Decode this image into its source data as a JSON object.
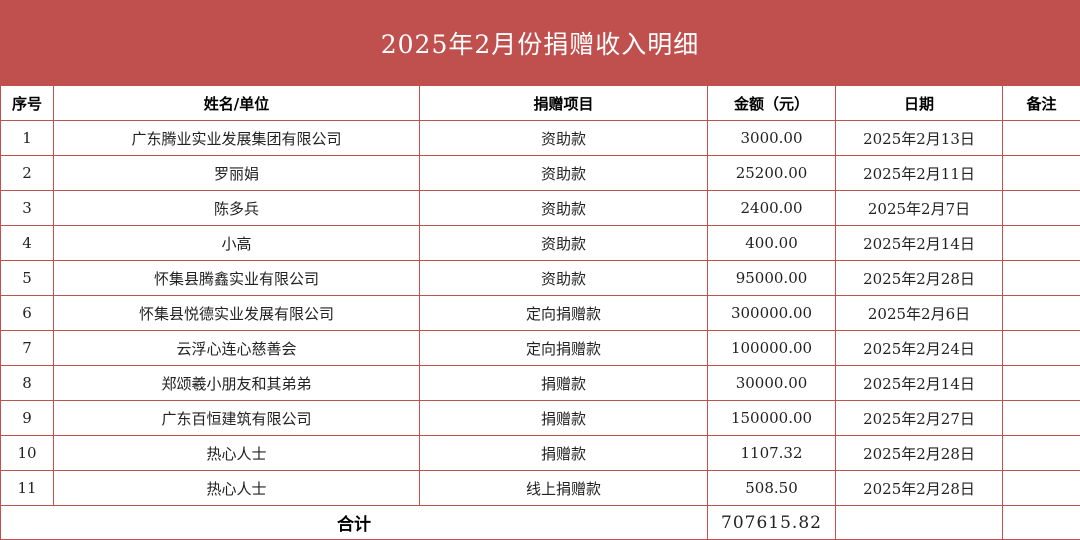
{
  "title": "2025年2月份捐赠收入明细",
  "accent_color": "#c0504d",
  "headers": {
    "index": "序号",
    "name": "姓名/单位",
    "item": "捐赠项目",
    "amount": "金额（元）",
    "date": "日期",
    "note": "备注"
  },
  "rows": [
    {
      "index": "1",
      "name": "广东腾业实业发展集团有限公司",
      "item": "资助款",
      "amount": "3000.00",
      "date": "2025年2月13日",
      "note": ""
    },
    {
      "index": "2",
      "name": "罗丽娟",
      "item": "资助款",
      "amount": "25200.00",
      "date": "2025年2月11日",
      "note": ""
    },
    {
      "index": "3",
      "name": "陈多兵",
      "item": "资助款",
      "amount": "2400.00",
      "date": "2025年2月7日",
      "note": ""
    },
    {
      "index": "4",
      "name": "小高",
      "item": "资助款",
      "amount": "400.00",
      "date": "2025年2月14日",
      "note": ""
    },
    {
      "index": "5",
      "name": "怀集县腾鑫实业有限公司",
      "item": "资助款",
      "amount": "95000.00",
      "date": "2025年2月28日",
      "note": ""
    },
    {
      "index": "6",
      "name": "怀集县悦德实业发展有限公司",
      "item": "定向捐赠款",
      "amount": "300000.00",
      "date": "2025年2月6日",
      "note": ""
    },
    {
      "index": "7",
      "name": "云浮心连心慈善会",
      "item": "定向捐赠款",
      "amount": "100000.00",
      "date": "2025年2月24日",
      "note": ""
    },
    {
      "index": "8",
      "name": "郑颂羲小朋友和其弟弟",
      "item": "捐赠款",
      "amount": "30000.00",
      "date": "2025年2月14日",
      "note": ""
    },
    {
      "index": "9",
      "name": "广东百恒建筑有限公司",
      "item": "捐赠款",
      "amount": "150000.00",
      "date": "2025年2月27日",
      "note": ""
    },
    {
      "index": "10",
      "name": "热心人士",
      "item": "捐赠款",
      "amount": "1107.32",
      "date": "2025年2月28日",
      "note": ""
    },
    {
      "index": "11",
      "name": "热心人士",
      "item": "线上捐赠款",
      "amount": "508.50",
      "date": "2025年2月28日",
      "note": ""
    }
  ],
  "total": {
    "label": "合计",
    "amount": "707615.82",
    "date": "",
    "note": ""
  }
}
